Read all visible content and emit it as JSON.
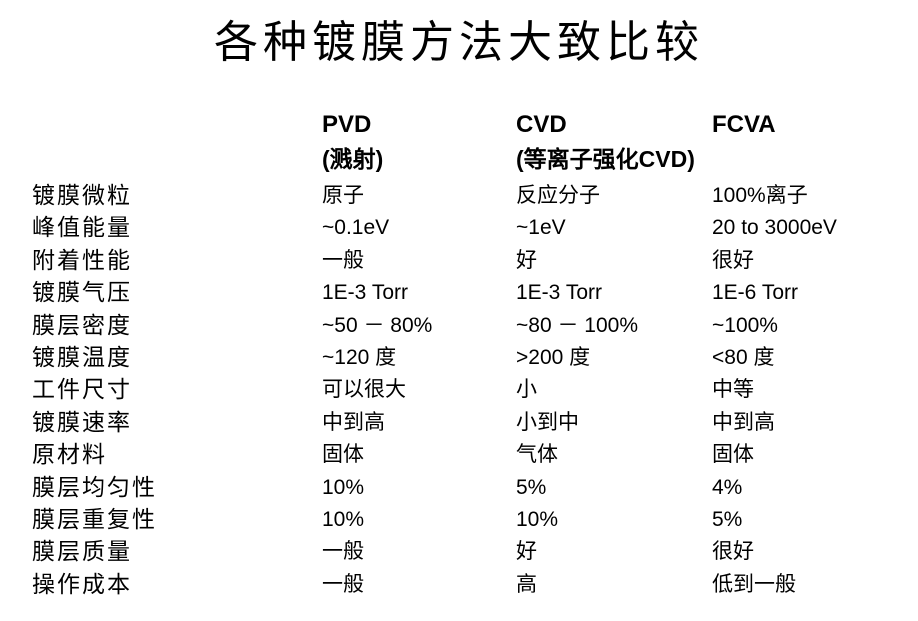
{
  "title": "各种镀膜方法大致比较",
  "table": {
    "columns": [
      {
        "name": "",
        "sub": ""
      },
      {
        "name": "PVD",
        "sub": "(溅射)"
      },
      {
        "name": "CVD",
        "sub": "(等离子强化CVD)"
      },
      {
        "name": "FCVA",
        "sub": ""
      }
    ],
    "rows": [
      {
        "label": "镀膜微粒",
        "pvd": "原子",
        "cvd": "反应分子",
        "fcva": "100%离子"
      },
      {
        "label": "峰值能量",
        "pvd": "~0.1eV",
        "cvd": "~1eV",
        "fcva": "20 to 3000eV"
      },
      {
        "label": "附着性能",
        "pvd": "一般",
        "cvd": "好",
        "fcva": "很好"
      },
      {
        "label": "镀膜气压",
        "pvd": "1E-3 Torr",
        "cvd": "1E-3 Torr",
        "fcva": "1E-6 Torr"
      },
      {
        "label": "膜层密度",
        "pvd": "~50 － 80%",
        "cvd": "~80 － 100%",
        "fcva": "~100%"
      },
      {
        "label": "镀膜温度",
        "pvd": "~120 度",
        "cvd": ">200 度",
        "fcva": "<80 度"
      },
      {
        "label": "工件尺寸",
        "pvd": "可以很大",
        "cvd": "小",
        "fcva": "中等"
      },
      {
        "label": "镀膜速率",
        "pvd": "中到高",
        "cvd": "小到中",
        "fcva": "中到高"
      },
      {
        "label": "原材料",
        "pvd": "固体",
        "cvd": "气体",
        "fcva": "固体"
      },
      {
        "label": "膜层均匀性",
        "pvd": "10%",
        "cvd": "5%",
        "fcva": "4%"
      },
      {
        "label": "膜层重复性",
        "pvd": "10%",
        "cvd": "10%",
        "fcva": "5%"
      },
      {
        "label": "膜层质量",
        "pvd": "一般",
        "cvd": "好",
        "fcva": "很好"
      },
      {
        "label": "操作成本",
        "pvd": "一般",
        "cvd": "高",
        "fcva": "低到一般"
      }
    ]
  }
}
